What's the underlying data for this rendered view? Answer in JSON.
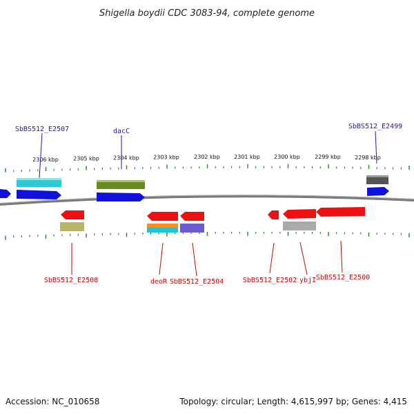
{
  "title": "Shigella boydii CDC 3083-94, complete genome",
  "footer": {
    "accession": "Accession: NC_010658",
    "summary": "Topology: circular; Length: 4,615,997 bp; Genes: 4,415"
  },
  "colors": {
    "backbone": "#777777",
    "tick": "#2e8b2e",
    "forward_label": "#1a1aa6",
    "reverse_label": "#cc0000"
  },
  "scale_ticks": [
    "2306 kbp",
    "2305 kbp",
    "2304 kbp",
    "2303 kbp",
    "2302 kbp",
    "2301 kbp",
    "2300 kbp",
    "2299 kbp",
    "2298 kbp"
  ],
  "genes_forward": [
    {
      "name": "unlabeled",
      "label": "",
      "color": "#1111dd"
    },
    {
      "name": "SbBS512_E2507",
      "label": "SbBS512_E2507",
      "color": "#1111dd",
      "feature_color": "#2ec7d6"
    },
    {
      "name": "dacC",
      "label": "dacC",
      "color": "#1111dd",
      "feature_color": "#6b8a22"
    },
    {
      "name": "SbBS512_E2499",
      "label": "SbBS512_E2499",
      "color": "#1111dd",
      "feature_color": "#555555"
    }
  ],
  "genes_reverse": [
    {
      "name": "SbBS512_E2508",
      "label": "SbBS512_E2508",
      "color": "#ee1111",
      "feature_color": "#b8b46a"
    },
    {
      "name": "deoR",
      "label": "deoR",
      "color": "#ee1111",
      "feature_color": "#ff8c1a",
      "feature_color_2": "#22c4d4"
    },
    {
      "name": "SbBS512_E2504",
      "label": "SbBS512_E2504",
      "color": "#ee1111",
      "feature_color": "#6a5acd"
    },
    {
      "name": "SbBS512_E2502",
      "label": "SbBS512_E2502",
      "color": "#ee1111"
    },
    {
      "name": "ybjI",
      "label": "ybjI",
      "color": "#ee1111",
      "feature_color": "#aaaaaa"
    },
    {
      "name": "SbBS512_E2500",
      "label": "SbBS512_E2500",
      "color": "#ee1111"
    }
  ]
}
